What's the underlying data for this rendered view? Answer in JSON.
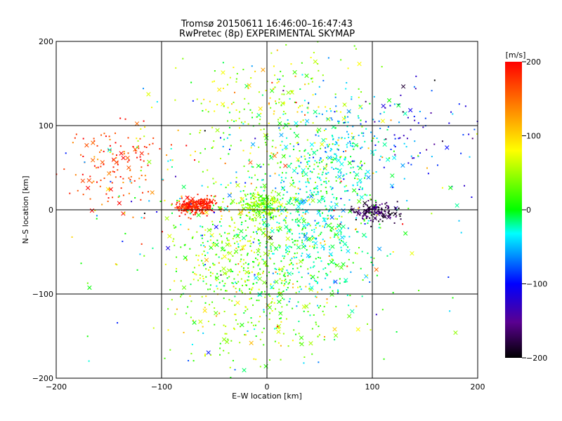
{
  "chart_data": {
    "type": "scatter",
    "title": "Tromsø 20150611 16:46:00–16:47:43",
    "subtitle": "RwPretec (8p) EXPERIMENTAL SKYMAP",
    "xlabel": "E–W location [km]",
    "ylabel": "N–S location [km]",
    "xlim": [
      -200,
      200
    ],
    "ylim": [
      -200,
      200
    ],
    "x_ticks": [
      "−200",
      "−100",
      "0",
      "100",
      "200"
    ],
    "y_ticks": [
      "−200",
      "−100",
      "0",
      "100",
      "200"
    ],
    "grid": true,
    "colorbar": {
      "label": "[m/s]",
      "range": [
        -200,
        200
      ],
      "ticks": [
        "200",
        "100",
        "0",
        "−100",
        "−200"
      ],
      "colormap": "rainbow (black → purple → blue → cyan → green → yellow → red)"
    },
    "marker_types": [
      "small dot",
      "cross"
    ],
    "clusters": [
      {
        "region": "west",
        "x": -68,
        "y": 4,
        "sx": 10,
        "sy": 5,
        "n": 260,
        "v": 185,
        "vs": 15
      },
      {
        "region": "northwest",
        "x": -140,
        "y": 50,
        "sx": 22,
        "sy": 28,
        "n": 140,
        "v": 175,
        "vs": 25
      },
      {
        "region": "center",
        "x": -5,
        "y": 5,
        "sx": 10,
        "sy": 8,
        "n": 200,
        "v": 40,
        "vs": 25
      },
      {
        "region": "south-central",
        "x": -15,
        "y": -70,
        "sx": 38,
        "sy": 55,
        "n": 650,
        "v": 40,
        "vs": 35
      },
      {
        "region": "north-central",
        "x": 10,
        "y": 110,
        "sx": 40,
        "sy": 45,
        "n": 280,
        "v": 50,
        "vs": 35
      },
      {
        "region": "east",
        "x": 45,
        "y": -20,
        "sx": 28,
        "sy": 45,
        "n": 420,
        "v": -20,
        "vs": 22
      },
      {
        "region": "northeast",
        "x": 70,
        "y": 75,
        "sx": 28,
        "sy": 30,
        "n": 200,
        "v": -40,
        "vs": 25
      },
      {
        "region": "far-east",
        "x": 140,
        "y": 90,
        "sx": 28,
        "sy": 35,
        "n": 70,
        "v": -110,
        "vs": 40
      },
      {
        "region": "east-low",
        "x": 105,
        "y": -3,
        "sx": 10,
        "sy": 5,
        "n": 150,
        "v": -175,
        "vs": 20
      },
      {
        "region": "diffuse",
        "x": 0,
        "y": 0,
        "sx": 90,
        "sy": 90,
        "n": 350,
        "v": 20,
        "vs": 80
      }
    ]
  }
}
